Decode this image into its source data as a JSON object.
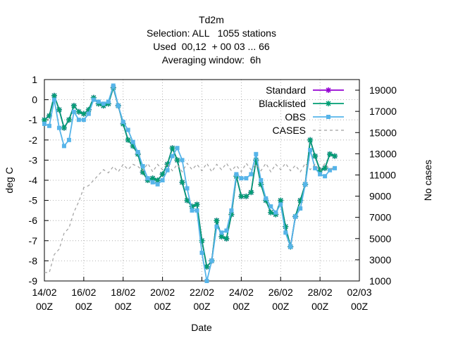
{
  "chart_data": {
    "type": "line",
    "title": [
      "Td2m",
      "Selection: ALL   1055 stations",
      "Used  00,12  + 00 03 ... 66",
      "Averaging window:  6h"
    ],
    "xlabel": "Date",
    "ylabel": "deg C",
    "y2label": "No cases",
    "x": [
      "14/02 00Z",
      "14/02 06Z",
      "14/02 12Z",
      "14/02 18Z",
      "15/02 00Z",
      "15/02 06Z",
      "15/02 12Z",
      "15/02 18Z",
      "16/02 00Z",
      "16/02 06Z",
      "16/02 12Z",
      "16/02 18Z",
      "17/02 00Z",
      "17/02 06Z",
      "17/02 12Z",
      "17/02 18Z",
      "18/02 00Z",
      "18/02 06Z",
      "18/02 12Z",
      "18/02 18Z",
      "19/02 00Z",
      "19/02 06Z",
      "19/02 12Z",
      "19/02 18Z",
      "20/02 00Z",
      "20/02 06Z",
      "20/02 12Z",
      "20/02 18Z",
      "21/02 00Z",
      "21/02 06Z",
      "21/02 12Z",
      "21/02 18Z",
      "22/02 00Z",
      "22/02 06Z",
      "22/02 12Z",
      "22/02 18Z",
      "23/02 00Z",
      "23/02 06Z",
      "23/02 12Z",
      "23/02 18Z",
      "24/02 00Z",
      "24/02 06Z",
      "24/02 12Z",
      "24/02 18Z",
      "25/02 00Z",
      "25/02 06Z",
      "25/02 12Z",
      "25/02 18Z",
      "26/02 00Z",
      "26/02 06Z",
      "26/02 12Z",
      "26/02 18Z",
      "27/02 00Z",
      "27/02 06Z",
      "27/02 12Z",
      "27/02 18Z",
      "28/02 00Z",
      "28/02 06Z",
      "28/02 12Z",
      "28/02 18Z"
    ],
    "xlim": [
      "14/02 00Z",
      "02/03 00Z"
    ],
    "xticks": [
      "14/02 00Z",
      "16/02 00Z",
      "18/02 00Z",
      "20/02 00Z",
      "22/02 00Z",
      "24/02 00Z",
      "26/02 00Z",
      "28/02 00Z",
      "02/03 00Z"
    ],
    "ylim": [
      -9,
      1
    ],
    "yticks": [
      -9,
      -8,
      -7,
      -6,
      -5,
      -4,
      -3,
      -2,
      -1,
      0,
      1
    ],
    "y2lim": [
      1000,
      20000
    ],
    "y2ticks": [
      1000,
      3000,
      5000,
      7000,
      9000,
      11000,
      13000,
      15000,
      17000,
      19000
    ],
    "grid": true,
    "legend": "upper right",
    "series": [
      {
        "name": "Standard",
        "color": "#9400d3",
        "marker": "star",
        "values": [
          -1.0,
          -0.8,
          0.2,
          -0.5,
          -1.4,
          -1.0,
          -0.3,
          -0.6,
          -0.7,
          -0.5,
          0.1,
          -0.2,
          -0.3,
          -0.2,
          0.6,
          -0.3,
          -1.2,
          -2.0,
          -2.3,
          -2.7,
          -3.6,
          -4.0,
          -3.9,
          -4.0,
          -3.7,
          -3.2,
          -2.4,
          -3.0,
          -4.1,
          -5.0,
          -5.3,
          -5.2,
          -7.0,
          -8.3,
          -8.0,
          -6.0,
          -6.8,
          -6.9,
          -5.7,
          -3.8,
          -4.8,
          -4.8,
          -4.6,
          -3.0,
          -4.2,
          -5.0,
          -5.6,
          -5.7,
          -5.0,
          -6.3,
          -7.3,
          -5.8,
          -5.0,
          -4.2,
          -2.0,
          -2.8,
          -3.5,
          -3.4,
          -2.7,
          -2.8
        ]
      },
      {
        "name": "Blacklisted",
        "color": "#009e73",
        "marker": "star",
        "values": [
          -1.0,
          -0.8,
          0.2,
          -0.5,
          -1.4,
          -1.0,
          -0.3,
          -0.6,
          -0.7,
          -0.5,
          0.1,
          -0.2,
          -0.3,
          -0.2,
          0.6,
          -0.3,
          -1.2,
          -2.0,
          -2.3,
          -2.7,
          -3.6,
          -4.0,
          -3.9,
          -4.0,
          -3.7,
          -3.2,
          -2.4,
          -3.0,
          -4.1,
          -5.0,
          -5.3,
          -5.2,
          -7.0,
          -8.3,
          -8.0,
          -6.0,
          -6.8,
          -6.9,
          -5.7,
          -3.8,
          -4.8,
          -4.8,
          -4.6,
          -3.0,
          -4.2,
          -5.0,
          -5.6,
          -5.7,
          -5.0,
          -6.3,
          -7.3,
          -5.8,
          -5.0,
          -4.2,
          -2.0,
          -2.8,
          -3.5,
          -3.4,
          -2.7,
          -2.8
        ]
      },
      {
        "name": "OBS",
        "color": "#56b4e9",
        "marker": "square",
        "values": [
          -1.2,
          -1.3,
          0.0,
          -1.4,
          -2.3,
          -2.0,
          -0.6,
          -1.0,
          -1.0,
          -0.7,
          0.0,
          -0.1,
          -0.2,
          -0.1,
          0.7,
          -0.3,
          -1.1,
          -1.5,
          -2.1,
          -2.6,
          -3.3,
          -3.9,
          -4.1,
          -4.2,
          -4.0,
          -3.5,
          -2.8,
          -2.4,
          -3.0,
          -4.4,
          -5.5,
          -5.5,
          -7.6,
          -9.0,
          -8.0,
          -6.3,
          -6.6,
          -6.5,
          -5.5,
          -3.7,
          -3.9,
          -3.9,
          -3.7,
          -2.7,
          -4.0,
          -4.9,
          -5.3,
          -5.6,
          -5.2,
          -6.6,
          -7.3,
          -5.8,
          -5.4,
          -4.2,
          -2.5,
          -3.4,
          -3.7,
          -3.8,
          -3.5,
          -3.4
        ]
      },
      {
        "name": "CASES",
        "color": "#a0a0a0",
        "axis": "y2",
        "dashed": true,
        "values": [
          1800,
          1800,
          3500,
          4000,
          5500,
          6000,
          7500,
          8500,
          9800,
          10000,
          10500,
          11000,
          11500,
          11200,
          11800,
          11300,
          12000,
          11500,
          12000,
          11800,
          11400,
          12100,
          11300,
          12000,
          11500,
          12100,
          11400,
          12000,
          11300,
          12100,
          11500,
          12000,
          11400,
          12100,
          11300,
          12000,
          11500,
          12100,
          11400,
          11900,
          11300,
          12100,
          11500,
          12000,
          11400,
          12100,
          11300,
          12000,
          11500,
          12100,
          11400,
          11900,
          11300,
          12100,
          11500,
          12000,
          11400,
          12100,
          11500,
          11800
        ]
      }
    ]
  }
}
